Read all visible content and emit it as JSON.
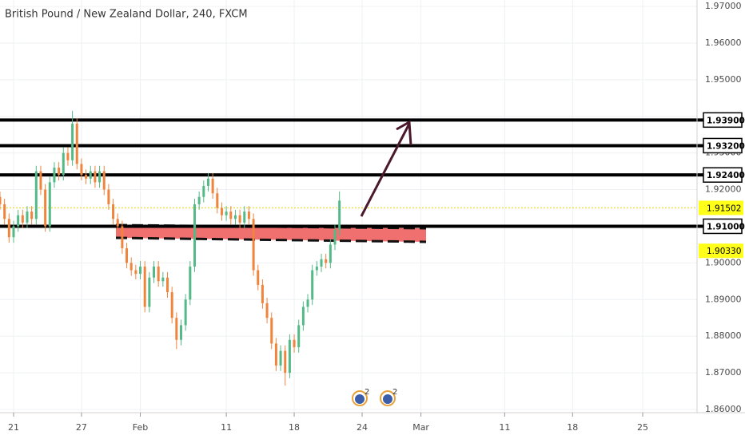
{
  "chart_data": {
    "type": "candlestick",
    "title": "British Pound / New Zealand Dollar, 240, FXCM",
    "x": [
      -6,
      -4,
      -2,
      0,
      2,
      4,
      6,
      8,
      10,
      12,
      14,
      16,
      18,
      20,
      22,
      24,
      26,
      28,
      30,
      32,
      34,
      36,
      38,
      40,
      42,
      44,
      46,
      48,
      50,
      52,
      54,
      56,
      58,
      60,
      62,
      64,
      66,
      68,
      70,
      72,
      74,
      76,
      78,
      80,
      82,
      84,
      86,
      88,
      90,
      92,
      94,
      96,
      98,
      100,
      102,
      104,
      106,
      108,
      110,
      112,
      114,
      116,
      118,
      120,
      122,
      124,
      126,
      128,
      130,
      132,
      134,
      136,
      138,
      140,
      142,
      144
    ],
    "open": [
      1.918,
      1.916,
      1.912,
      1.907,
      1.91,
      1.913,
      1.911,
      1.914,
      1.912,
      1.925,
      1.92,
      1.91,
      1.922,
      1.926,
      1.924,
      1.93,
      1.928,
      1.938,
      1.927,
      1.924,
      1.923,
      1.925,
      1.922,
      1.925,
      1.92,
      1.916,
      1.912,
      1.91,
      1.904,
      1.9,
      1.898,
      1.897,
      1.899,
      1.888,
      1.896,
      1.899,
      1.895,
      1.896,
      1.892,
      1.885,
      1.879,
      1.883,
      1.89,
      1.899,
      1.916,
      1.918,
      1.921,
      1.923,
      1.919,
      1.915,
      1.913,
      1.914,
      1.912,
      1.913,
      1.911,
      1.914,
      1.912,
      1.898,
      1.894,
      1.889,
      1.885,
      1.878,
      1.872,
      1.876,
      1.87,
      1.879,
      1.877,
      1.883,
      1.888,
      1.89,
      1.898,
      1.899,
      1.901,
      1.9,
      1.905,
      1.909
    ],
    "high": [
      1.9195,
      1.9175,
      1.9135,
      1.9115,
      1.9145,
      1.9145,
      1.9155,
      1.9155,
      1.9265,
      1.9265,
      1.9215,
      1.9235,
      1.9275,
      1.9275,
      1.9315,
      1.9315,
      1.9415,
      1.9395,
      1.9285,
      1.9255,
      1.9265,
      1.9265,
      1.9265,
      1.9265,
      1.9215,
      1.9175,
      1.9135,
      1.9115,
      1.9055,
      1.9015,
      1.8995,
      1.9005,
      1.9005,
      1.8975,
      1.9005,
      1.9005,
      1.8975,
      1.8975,
      1.8935,
      1.8865,
      1.8845,
      1.8915,
      1.9005,
      1.9175,
      1.9195,
      1.9225,
      1.9245,
      1.9245,
      1.9205,
      1.9165,
      1.9155,
      1.9155,
      1.9145,
      1.9145,
      1.9155,
      1.9155,
      1.9135,
      1.8995,
      1.8955,
      1.8905,
      1.8865,
      1.8795,
      1.8775,
      1.8775,
      1.8805,
      1.8805,
      1.8845,
      1.8895,
      1.8915,
      1.8995,
      1.9005,
      1.9025,
      1.9025,
      1.9065,
      1.9105,
      1.9195
    ],
    "low": [
      1.9145,
      1.9105,
      1.9055,
      1.9055,
      1.9085,
      1.9095,
      1.9095,
      1.9105,
      1.9105,
      1.9185,
      1.9085,
      1.9085,
      1.9205,
      1.9225,
      1.9225,
      1.9265,
      1.9265,
      1.9255,
      1.9225,
      1.9215,
      1.9215,
      1.9205,
      1.9205,
      1.9185,
      1.9145,
      1.9105,
      1.9085,
      1.9025,
      1.8985,
      1.8965,
      1.8955,
      1.8955,
      1.8865,
      1.8865,
      1.8945,
      1.8935,
      1.8935,
      1.8905,
      1.8835,
      1.8765,
      1.8775,
      1.8815,
      1.8885,
      1.8975,
      1.9145,
      1.9165,
      1.9195,
      1.9175,
      1.9135,
      1.9115,
      1.9115,
      1.9105,
      1.9105,
      1.9095,
      1.9095,
      1.9105,
      1.8965,
      1.8925,
      1.8875,
      1.8835,
      1.8765,
      1.8705,
      1.8705,
      1.8665,
      1.8685,
      1.8755,
      1.8755,
      1.8815,
      1.8865,
      1.8885,
      1.8965,
      1.8975,
      1.8985,
      1.8985,
      1.9035,
      1.9075
    ],
    "close": [
      1.916,
      1.912,
      1.907,
      1.91,
      1.913,
      1.911,
      1.914,
      1.912,
      1.925,
      1.92,
      1.91,
      1.922,
      1.926,
      1.924,
      1.93,
      1.928,
      1.938,
      1.927,
      1.924,
      1.923,
      1.925,
      1.922,
      1.925,
      1.92,
      1.916,
      1.912,
      1.91,
      1.904,
      1.9,
      1.898,
      1.897,
      1.899,
      1.888,
      1.896,
      1.899,
      1.895,
      1.896,
      1.892,
      1.885,
      1.879,
      1.883,
      1.89,
      1.899,
      1.916,
      1.918,
      1.921,
      1.923,
      1.919,
      1.915,
      1.913,
      1.914,
      1.912,
      1.913,
      1.911,
      1.914,
      1.912,
      1.898,
      1.894,
      1.889,
      1.885,
      1.878,
      1.872,
      1.876,
      1.87,
      1.879,
      1.877,
      1.883,
      1.888,
      1.89,
      1.898,
      1.899,
      1.901,
      1.9,
      1.905,
      1.909,
      1.917
    ],
    "up_color": "#53b987",
    "down_color": "#f0843c",
    "xlim": [
      -6,
      302
    ],
    "xticks": [
      {
        "value": 0,
        "label": "21"
      },
      {
        "value": 30,
        "label": "27"
      },
      {
        "value": 56,
        "label": "Feb"
      },
      {
        "value": 94,
        "label": "11"
      },
      {
        "value": 124,
        "label": "18"
      },
      {
        "value": 154,
        "label": "24"
      },
      {
        "value": 180,
        "label": "Mar"
      },
      {
        "value": 217,
        "label": "11"
      },
      {
        "value": 247,
        "label": "18"
      },
      {
        "value": 278,
        "label": "25"
      }
    ],
    "ylim": [
      1.86,
      1.97
    ],
    "yticks": [
      {
        "value": 1.86,
        "label": "1.86000"
      },
      {
        "value": 1.87,
        "label": "1.87000"
      },
      {
        "value": 1.88,
        "label": "1.88000"
      },
      {
        "value": 1.89,
        "label": "1.89000"
      },
      {
        "value": 1.9,
        "label": "1.90000"
      },
      {
        "value": 1.91,
        "label": "1.91000"
      },
      {
        "value": 1.92,
        "label": "1.92000"
      },
      {
        "value": 1.93,
        "label": "1.93000"
      },
      {
        "value": 1.94,
        "label": "1.94000"
      },
      {
        "value": 1.95,
        "label": "1.95000"
      },
      {
        "value": 1.96,
        "label": "1.96000"
      },
      {
        "value": 1.97,
        "label": "1.97000"
      }
    ],
    "grid": true,
    "levels": [
      {
        "value": 1.939,
        "label": "1.93900"
      },
      {
        "value": 1.932,
        "label": "1.93200"
      },
      {
        "value": 1.924,
        "label": "1.92400"
      },
      {
        "value": 1.91,
        "label": "1.91000"
      }
    ],
    "price_markers": [
      {
        "value": 1.91502,
        "label": "1.91502"
      },
      {
        "value": 1.9033,
        "label": "1.90330"
      }
    ],
    "events": [
      {
        "label": "2"
      },
      {
        "label": "2"
      }
    ]
  }
}
